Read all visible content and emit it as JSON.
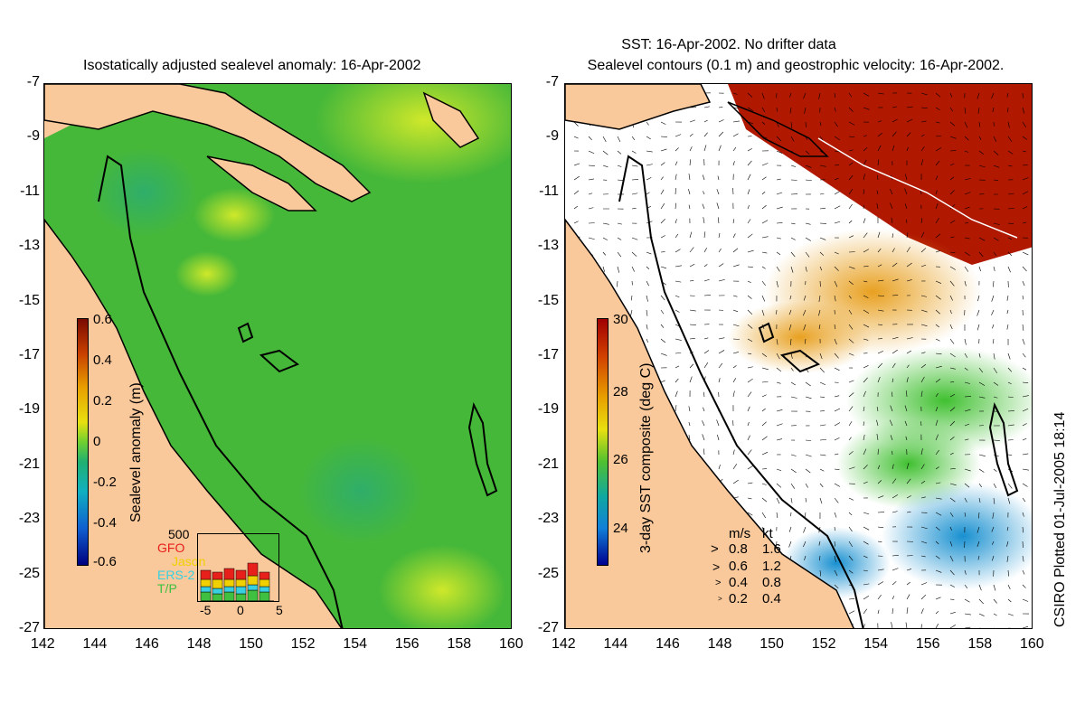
{
  "left_panel": {
    "title": "Isostatically adjusted sealevel anomaly: 16-Apr-2002",
    "colorbar_label": "Sealevel anomaly (m)",
    "colorbar_ticks": [
      "0.6",
      "0.4",
      "0.2",
      "0",
      "-0.2",
      "-0.4",
      "-0.6"
    ],
    "satellite_count_label": "500",
    "satellites": [
      {
        "name": "GFO",
        "color": "#e8201c"
      },
      {
        "name": "Jason",
        "color": "#f0d000"
      },
      {
        "name": "ERS-2",
        "color": "#38d0e0"
      },
      {
        "name": "T/P",
        "color": "#40c040"
      }
    ],
    "inset_xticks": [
      "-5",
      "0",
      "5"
    ]
  },
  "right_panel": {
    "title_line1": "SST: 16-Apr-2002. No drifter data",
    "title_line2": "Sealevel contours (0.1 m) and geostrophic velocity: 16-Apr-2002.",
    "colorbar_label": "3-day SST composite (deg C)",
    "colorbar_ticks": [
      "30",
      "28",
      "26",
      "24"
    ],
    "velocity_legend": {
      "header_ms": "m/s",
      "header_kt": "kt",
      "rows": [
        {
          "ms": "0.8",
          "kt": "1.6"
        },
        {
          "ms": "0.6",
          "kt": "1.2"
        },
        {
          "ms": "0.4",
          "kt": "0.8"
        },
        {
          "ms": "0.2",
          "kt": "0.4"
        }
      ]
    }
  },
  "axes": {
    "x_ticks": [
      "142",
      "144",
      "146",
      "148",
      "150",
      "152",
      "154",
      "156",
      "158",
      "160"
    ],
    "y_ticks": [
      "-7",
      "-9",
      "-11",
      "-13",
      "-15",
      "-17",
      "-19",
      "-21",
      "-23",
      "-25",
      "-27"
    ]
  },
  "credit": "CSIRO Plotted 01-Jul-2005 18:14",
  "colors": {
    "land": "#f9c89b",
    "sea_green": "#3fb83f",
    "warm_red": "#b01800"
  }
}
